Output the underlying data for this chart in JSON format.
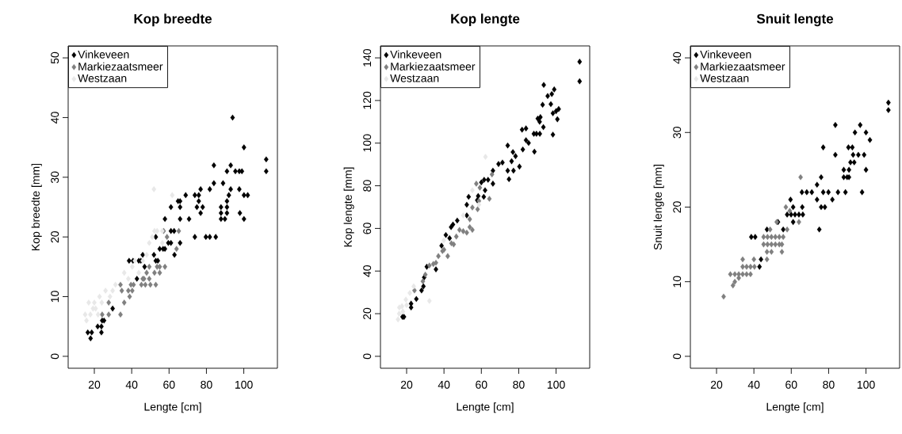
{
  "chart_data": [
    {
      "type": "scatter",
      "title": "Kop breedte",
      "xlabel": "Lengte [cm]",
      "ylabel": "Kop breedte [mm]",
      "xlim": [
        6,
        118
      ],
      "ylim": [
        -2,
        52
      ],
      "xticks": [
        20,
        40,
        60,
        80,
        100
      ],
      "yticks": [
        0,
        10,
        20,
        30,
        40,
        50
      ],
      "legend": "top left",
      "marker": "diamond",
      "series": [
        {
          "name": "Vinkeveen",
          "color": "#000000",
          "x": [
            16.5,
            18.6,
            18,
            21.8,
            23.8,
            23.8,
            24.2,
            25.2,
            29.8,
            42.8,
            38.6,
            40.7,
            43.8,
            44.9,
            45.9,
            46.9,
            51.9,
            52.9,
            54,
            52.9,
            55,
            56.8,
            57.8,
            59.6,
            61,
            65.9,
            62.9,
            57.8,
            61,
            62.7,
            61,
            65.9,
            65.9,
            64.8,
            65.9,
            68.9,
            70.7,
            73.8,
            75.9,
            74.9,
            78,
            75.9,
            76.9,
            76.9,
            73.8,
            79.7,
            81.8,
            85,
            81.8,
            84,
            84,
            88.9,
            87.8,
            91,
            87.8,
            91,
            87.8,
            89.9,
            91,
            92,
            93,
            93,
            91,
            95.5,
            97.6,
            99,
            97.6,
            97.9,
            100.1,
            100.1,
            102.1,
            100.1,
            94,
            112,
            112
          ],
          "values": [
            4,
            4,
            3,
            5,
            5,
            4,
            6,
            6,
            8,
            13,
            16,
            16,
            16,
            16,
            17,
            15,
            17,
            16,
            16,
            20,
            18,
            18,
            18,
            19,
            19,
            19,
            17,
            23,
            21,
            21,
            25,
            25,
            23,
            26,
            26,
            27,
            23,
            27,
            27,
            25,
            25,
            26,
            24,
            28,
            20,
            20,
            20,
            20,
            28,
            32,
            29,
            29,
            25,
            25,
            24,
            24,
            23,
            23,
            26,
            27,
            28,
            32,
            31,
            31,
            31,
            31,
            28,
            24,
            23,
            27,
            27,
            35,
            40,
            33,
            31
          ]
        },
        {
          "name": "Markiezaatsmeer",
          "color": "#808080",
          "x": [
            24.2,
            27.7,
            34,
            27.7,
            29,
            34,
            34.7,
            36,
            38.2,
            39.6,
            41,
            38.9,
            40.3,
            45.2,
            46.6,
            48,
            49.4,
            50,
            52.2,
            52.9,
            53.6,
            55,
            55,
            57.8,
            57.1,
            58.9,
            65.2,
            64,
            49.4,
            45.9,
            47.3
          ],
          "values": [
            7,
            7,
            7,
            9,
            null,
            12,
            11,
            9,
            11,
            12,
            12,
            10,
            11,
            12,
            13,
            14,
            13,
            12,
            14,
            12,
            15,
            15,
            14,
            15,
            21,
            20,
            21,
            18,
            15,
            13,
            12
          ]
        },
        {
          "name": "Westzaan",
          "color": "#e8e8e8",
          "x": [
            15.1,
            15.8,
            17.9,
            19.3,
            20.7,
            22.8,
            26,
            28.4,
            29.8,
            31.3,
            36,
            38.2,
            40.3,
            41.7,
            43.8,
            45.9,
            48,
            49.4,
            51,
            52.2,
            53.6,
            56.4,
            56.4,
            51.9,
            61.7,
            17,
            20,
            22,
            24
          ],
          "values": [
            7,
            6,
            7,
            8,
            8,
            10,
            11,
            10,
            11,
            12,
            14,
            13,
            15,
            16,
            14,
            16,
            17,
            19,
            20,
            21,
            21,
            21,
            19,
            28,
            27,
            9,
            9,
            7,
            9
          ]
        }
      ]
    },
    {
      "type": "scatter",
      "title": "Kop lengte",
      "xlabel": "Lengte [cm]",
      "ylabel": "Kop lengte [mm]",
      "xlim": [
        6,
        118
      ],
      "ylim": [
        -5.6,
        145.6
      ],
      "xticks": [
        20,
        40,
        60,
        80,
        100
      ],
      "yticks": [
        0,
        20,
        40,
        60,
        80,
        100,
        120,
        140
      ],
      "legend": "top left",
      "marker": "diamond",
      "series": [
        {
          "name": "Vinkeveen",
          "color": "#000000",
          "x": [
            17.8,
            18.6,
            22.4,
            22.4,
            25.2,
            28,
            29,
            29.4,
            35.7,
            30.8,
            38.7,
            41,
            43,
            43.8,
            44.8,
            47.1,
            52.2,
            52.2,
            53.2,
            57.8,
            58.3,
            60,
            61.5,
            63.6,
            62,
            61.3,
            66.2,
            66.2,
            69.2,
            71.3,
            74.1,
            74.1,
            74.8,
            76.2,
            76.9,
            78.3,
            77.2,
            80.4,
            82.2,
            81.8,
            83.9,
            83.9,
            85.3,
            88.4,
            88.1,
            89.5,
            91.3,
            90.2,
            91.6,
            91.2,
            93.2,
            92.8,
            93.4,
            95.5,
            97.7,
            99,
            97.2,
            98.3,
            100,
            101.4,
            100.7,
            98.3,
            112.6,
            112.6
          ],
          "values": [
            18.5,
            18.5,
            22.9,
            24.7,
            26.9,
            30.9,
            32.8,
            37,
            40.8,
            42,
            51.9,
            56.9,
            55.4,
            60.6,
            61.8,
            63.7,
            66.1,
            71.1,
            74.8,
            73.2,
            75.2,
            81.6,
            82.8,
            82.8,
            77.9,
            74.8,
            87.1,
            81,
            90.2,
            90.9,
            98.9,
            87.1,
            83.1,
            91.5,
            95.8,
            93.9,
            87.1,
            89,
            97,
            106.3,
            106.9,
            101.4,
            100.1,
            96,
            104.4,
            104.4,
            104.4,
            111.5,
            112.2,
            110,
            107.5,
            118,
            127.3,
            122.1,
            123,
            125.2,
            118.3,
            114,
            115,
            116,
            111.2,
            104,
            138.2,
            129
          ]
        },
        {
          "name": "Markiezaatsmeer",
          "color": "#808080",
          "x": [
            24.2,
            28.7,
            30,
            32.2,
            35.7,
            34.3,
            39.2,
            42,
            45.2,
            46.6,
            48.3,
            50.3,
            52.2,
            53.8,
            55.2,
            53.8,
            55.2,
            58,
            58.7,
            57.3,
            59.2,
            64.3,
            65.7,
            37,
            40,
            44
          ],
          "values": [
            30.9,
            35.2,
            38.3,
            42.6,
            43.9,
            43.3,
            49.4,
            47,
            52.5,
            56.2,
            59.3,
            58.7,
            58,
            60.6,
            59.3,
            64.3,
            69.8,
            69,
            72.9,
            81,
            79.1,
            73.9,
            85.3,
            47,
            50,
            53
          ]
        },
        {
          "name": "Westzaan",
          "color": "#e8e8e8",
          "x": [
            15.4,
            16.1,
            17.5,
            19.6,
            21.7,
            23.8,
            32.2,
            39.9,
            50.3,
            55.2,
            58.7,
            62.2,
            16,
            18,
            20
          ],
          "values": [
            17.3,
            22.9,
            23.5,
            26.6,
            29.7,
            32.8,
            26,
            54.4,
            66.1,
            77.9,
            71.1,
            93.6,
            20,
            21,
            24
          ]
        }
      ]
    },
    {
      "type": "scatter",
      "title": "Snuit lengte",
      "xlabel": "Lengte [cm]",
      "ylabel": "Snuit lengte [mm]",
      "xlim": [
        6,
        118
      ],
      "ylim": [
        -1.6,
        41.6
      ],
      "xticks": [
        20,
        40,
        60,
        80,
        100
      ],
      "yticks": [
        0,
        10,
        20,
        30,
        40
      ],
      "legend": "top left",
      "marker": "diamond",
      "series": [
        {
          "name": "Vinkeveen",
          "color": "#000000",
          "x": [
            112,
            112,
            83.6,
            96.9,
            94.1,
            100,
            102.1,
            77.1,
            83.6,
            90.6,
            92.7,
            93.1,
            95.9,
            98.3,
            99,
            91.7,
            93.7,
            88.1,
            90.9,
            100,
            88.1,
            89.9,
            90.9,
            76,
            73.8,
            65.7,
            68.3,
            71,
            77.1,
            79.9,
            85,
            89,
            97.9,
            59.6,
            73.8,
            82,
            61,
            65.9,
            76,
            78,
            57.8,
            59.9,
            62,
            64.1,
            66.2,
            61,
            75,
            47,
            52.9,
            55.7,
            38.6,
            40.7,
            43.8,
            43
          ],
          "values": [
            34,
            33,
            31,
            31,
            30,
            30,
            29,
            28,
            27,
            28,
            28,
            27,
            27,
            null,
            27,
            26,
            26,
            25,
            25,
            25,
            24,
            24,
            24,
            24,
            23,
            22,
            22,
            22,
            22,
            22,
            22,
            22,
            22,
            21,
            21,
            21,
            20,
            20,
            20,
            20,
            19,
            19,
            19,
            19,
            19,
            18,
            17,
            17,
            18,
            17,
            16,
            16,
            13,
            12
          ]
        },
        {
          "name": "Markiezaatsmeer",
          "color": "#808080",
          "x": [
            23.8,
            28.8,
            27.4,
            29.8,
            31.9,
            34,
            36.1,
            38.2,
            29.8,
            31.9,
            34,
            36.1,
            38.2,
            40.3,
            34,
            40,
            45.2,
            47.3,
            49.4,
            51.5,
            53.6,
            55,
            45.2,
            47.3,
            49.4,
            51.5,
            53.6,
            55.7,
            47,
            49.4,
            55,
            47,
            48.7,
            57.8,
            52.2,
            57.1,
            59.2,
            64.1,
            65
          ],
          "values": [
            8,
            9.5,
            11,
            11,
            11,
            11,
            11,
            11,
            10,
            10.5,
            12,
            12,
            12,
            12,
            13,
            13,
            15,
            15,
            15,
            15,
            15,
            15,
            16,
            16,
            16,
            16,
            16,
            16,
            14,
            14,
            14,
            13,
            17,
            17,
            18,
            20,
            19.5,
            18,
            24
          ]
        },
        {
          "name": "Westzaan",
          "color": "#e8e8e8"
        }
      ]
    }
  ]
}
